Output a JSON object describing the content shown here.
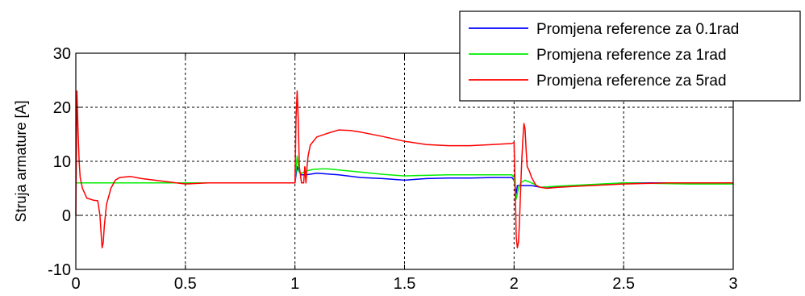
{
  "chart_data": {
    "type": "line",
    "title": "",
    "xlabel": "",
    "ylabel": "Struja armature [A]",
    "xlim": [
      0,
      3
    ],
    "ylim": [
      -10,
      30
    ],
    "xticks": [
      0,
      0.5,
      1,
      1.5,
      2,
      2.5,
      3
    ],
    "xtick_labels": [
      "0",
      "0.5",
      "1",
      "1.5",
      "2",
      "2.5",
      "3"
    ],
    "yticks": [
      -10,
      0,
      10,
      20,
      30
    ],
    "ytick_labels": [
      "-10",
      "0",
      "10",
      "20",
      "30"
    ],
    "grid": true,
    "legend_position": "top-right",
    "series": [
      {
        "name": "Promjena reference za 0.1rad",
        "color": "#0000ff",
        "x": [
          0,
          1.0,
          1.01,
          1.02,
          1.03,
          1.05,
          1.1,
          1.2,
          1.3,
          1.4,
          1.5,
          1.6,
          1.7,
          1.8,
          1.9,
          1.99,
          2.0,
          2.01,
          2.015,
          2.02,
          2.03,
          2.05,
          2.08,
          2.12,
          2.2,
          2.5,
          3.0
        ],
        "y": [
          6,
          6,
          9,
          8,
          7.5,
          7.5,
          7.8,
          7.5,
          7,
          6.8,
          6.5,
          6.8,
          6.9,
          6.9,
          7,
          7,
          6.5,
          4,
          5.5,
          5.5,
          5.5,
          5.5,
          5.5,
          5.2,
          5.3,
          6,
          6
        ]
      },
      {
        "name": "Promjena reference za 1rad",
        "color": "#00ee00",
        "x": [
          0,
          1.0,
          1.01,
          1.02,
          1.03,
          1.05,
          1.08,
          1.12,
          1.15,
          1.2,
          1.3,
          1.4,
          1.5,
          1.6,
          1.7,
          1.8,
          1.9,
          1.99,
          2.0,
          2.01,
          2.02,
          2.03,
          2.05,
          2.08,
          2.12,
          2.2,
          2.5,
          2.8,
          3.0
        ],
        "y": [
          6,
          6,
          11,
          8,
          7.8,
          8.2,
          8.5,
          8.6,
          8.6,
          8.4,
          8,
          7.6,
          7.3,
          7.4,
          7.5,
          7.5,
          7.5,
          7.5,
          7,
          3,
          5,
          6,
          6.5,
          6,
          5.2,
          5.4,
          6,
          5.8,
          5.8
        ]
      },
      {
        "name": "Promjena reference za 5rad",
        "color": "#ff0000",
        "x": [
          0,
          0.005,
          0.01,
          0.015,
          0.02,
          0.03,
          0.05,
          0.08,
          0.1,
          0.11,
          0.115,
          0.12,
          0.125,
          0.13,
          0.14,
          0.16,
          0.18,
          0.2,
          0.25,
          0.3,
          0.4,
          0.5,
          0.6,
          0.7,
          0.8,
          0.9,
          1.0,
          1.005,
          1.01,
          1.015,
          1.02,
          1.03,
          1.04,
          1.045,
          1.05,
          1.055,
          1.06,
          1.07,
          1.1,
          1.15,
          1.2,
          1.25,
          1.3,
          1.4,
          1.5,
          1.6,
          1.7,
          1.8,
          1.9,
          1.99,
          2.0,
          2.005,
          2.01,
          2.015,
          2.02,
          2.025,
          2.03,
          2.035,
          2.04,
          2.045,
          2.05,
          2.055,
          2.06,
          2.065,
          2.07,
          2.08,
          2.1,
          2.12,
          2.15,
          2.2,
          2.3,
          2.5,
          2.7,
          2.9,
          3.0
        ],
        "y": [
          0,
          23,
          16,
          10,
          7,
          5,
          3.2,
          2.8,
          2.7,
          0,
          -3,
          -6,
          -5,
          -2,
          2,
          5,
          6.5,
          7,
          7.2,
          6.8,
          6.3,
          5.8,
          6.0,
          6.0,
          6.0,
          6.0,
          6.0,
          18,
          23,
          18,
          9,
          6,
          6,
          9,
          6,
          9,
          11,
          13,
          14.5,
          15.2,
          15.8,
          15.7,
          15.4,
          14.6,
          13.7,
          13.1,
          12.9,
          12.9,
          13.1,
          13.3,
          13.5,
          5,
          -4,
          -6,
          -5,
          -1,
          5,
          10,
          14,
          17,
          16,
          12,
          9,
          8.6,
          8.2,
          7,
          5.5,
          5.2,
          5.0,
          5.2,
          5.4,
          5.8,
          6.0,
          6.0,
          6.0
        ]
      }
    ]
  }
}
